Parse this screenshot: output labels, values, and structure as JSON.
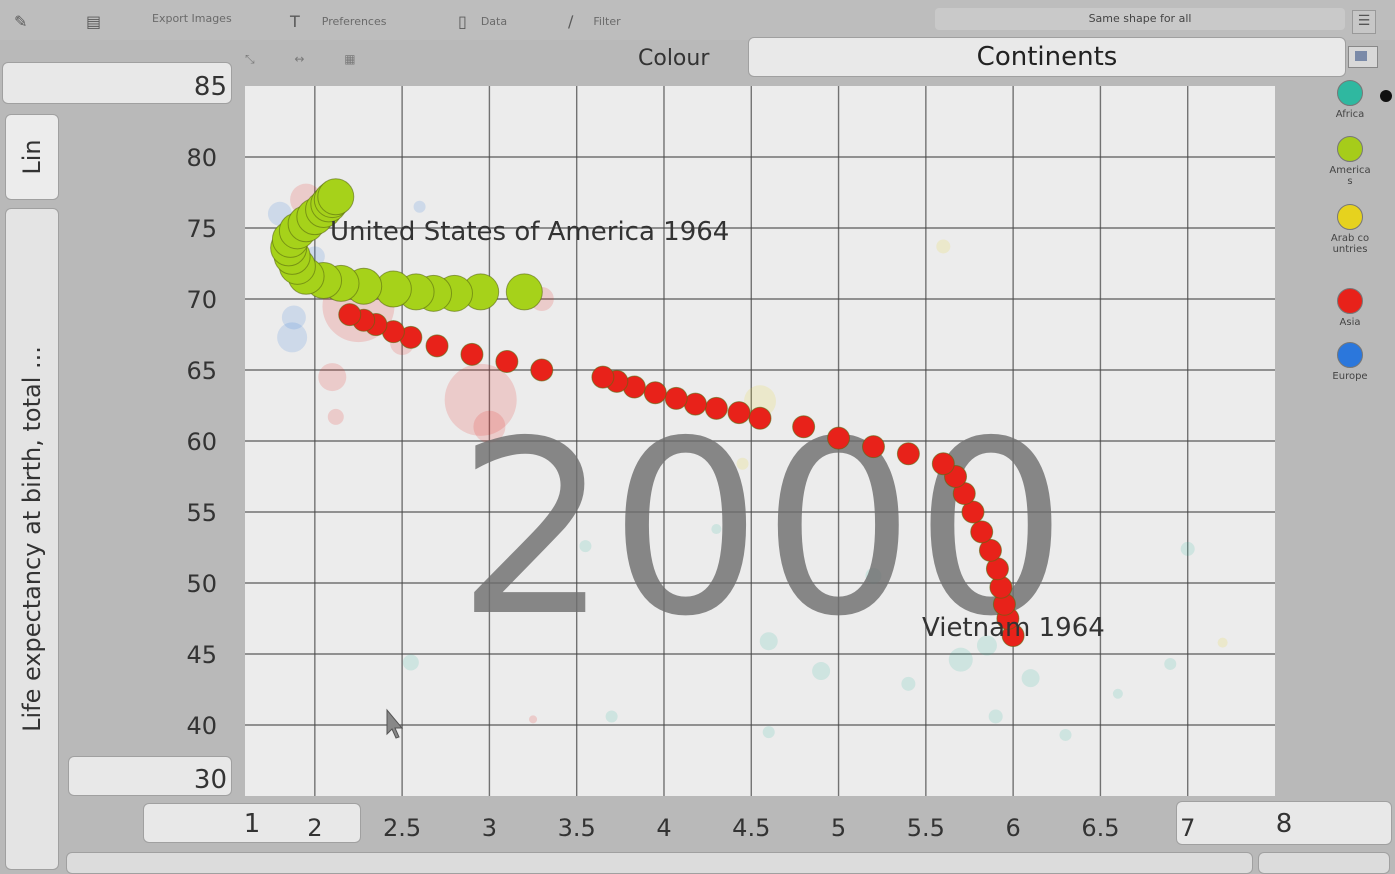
{
  "toolbar": {
    "items": [
      {
        "icon": "pencil-icon",
        "label": ""
      },
      {
        "icon": "chart-icon",
        "label": ""
      },
      {
        "icon": "",
        "label": "Export Images"
      },
      {
        "icon": "text-icon",
        "label": "Preferences"
      },
      {
        "icon": "document-icon",
        "label": "Data"
      },
      {
        "icon": "filter-icon",
        "label": "Filter"
      }
    ],
    "same_shape_label": "Same shape for all"
  },
  "colour": {
    "label": "Colour",
    "selected": "Continents"
  },
  "axes_controls": {
    "y_max": "85",
    "y_min": "30",
    "x_min": "1",
    "x_max": "8",
    "y_scale": "Lin",
    "y_indicator": "Life expectancy at birth, total ..."
  },
  "legend": [
    {
      "name": "Africa",
      "color": "#2fb8a0"
    },
    {
      "name": "Americas",
      "color": "#a6cc1a"
    },
    {
      "name": "Arab countries",
      "color": "#e6d21e"
    },
    {
      "name": "Asia",
      "color": "#e8221a"
    },
    {
      "name": "Europe",
      "color": "#2b77dc"
    }
  ],
  "chart_data": {
    "type": "scatter",
    "background_year": "2000",
    "x_ticks": [
      "2",
      "2.5",
      "3",
      "3.5",
      "4",
      "4.5",
      "5",
      "5.5",
      "6",
      "6.5",
      "7"
    ],
    "y_ticks": [
      "40",
      "45",
      "50",
      "55",
      "60",
      "65",
      "70",
      "75",
      "80"
    ],
    "xlim": [
      1.6,
      7.5
    ],
    "ylim": [
      35,
      85
    ],
    "grid": true,
    "series": [
      {
        "name": "United States of America",
        "label": "United States of America 1964",
        "color": "#a6d21a",
        "points": [
          [
            3.2,
            70.5
          ],
          [
            2.95,
            70.5
          ],
          [
            2.8,
            70.4
          ],
          [
            2.68,
            70.4
          ],
          [
            2.58,
            70.5
          ],
          [
            2.45,
            70.7
          ],
          [
            2.28,
            70.9
          ],
          [
            2.15,
            71.1
          ],
          [
            2.05,
            71.3
          ],
          [
            1.95,
            71.6
          ],
          [
            1.9,
            72.3
          ],
          [
            1.87,
            73.0
          ],
          [
            1.85,
            73.6
          ],
          [
            1.86,
            74.2
          ],
          [
            1.9,
            74.8
          ],
          [
            1.95,
            75.3
          ],
          [
            2.0,
            75.8
          ],
          [
            2.05,
            76.3
          ],
          [
            2.08,
            76.7
          ],
          [
            2.1,
            77.0
          ],
          [
            2.12,
            77.2
          ]
        ]
      },
      {
        "name": "Vietnam",
        "label": "Vietnam 1964",
        "color": "#e8221a",
        "points": [
          [
            6.0,
            46.3
          ],
          [
            5.97,
            47.5
          ],
          [
            5.95,
            48.5
          ],
          [
            5.93,
            49.7
          ],
          [
            5.91,
            51.0
          ],
          [
            5.87,
            52.3
          ],
          [
            5.82,
            53.6
          ],
          [
            5.77,
            55.0
          ],
          [
            5.72,
            56.3
          ],
          [
            5.67,
            57.5
          ],
          [
            5.6,
            58.4
          ],
          [
            5.4,
            59.1
          ],
          [
            5.2,
            59.6
          ],
          [
            5.0,
            60.2
          ],
          [
            4.8,
            61.0
          ],
          [
            4.55,
            61.6
          ],
          [
            4.43,
            62.0
          ],
          [
            4.3,
            62.3
          ],
          [
            4.18,
            62.6
          ],
          [
            4.07,
            63.0
          ],
          [
            3.95,
            63.4
          ],
          [
            3.83,
            63.8
          ],
          [
            3.73,
            64.2
          ],
          [
            3.65,
            64.5
          ],
          [
            3.3,
            65.0
          ],
          [
            3.1,
            65.6
          ],
          [
            2.9,
            66.1
          ],
          [
            2.7,
            66.7
          ],
          [
            2.55,
            67.3
          ],
          [
            2.45,
            67.7
          ],
          [
            2.35,
            68.2
          ],
          [
            2.28,
            68.5
          ],
          [
            2.2,
            68.9
          ]
        ]
      }
    ]
  }
}
